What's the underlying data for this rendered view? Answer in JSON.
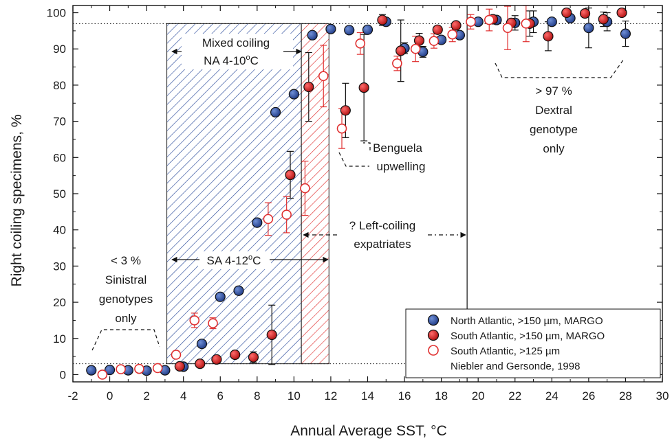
{
  "chart_data": {
    "type": "scatter",
    "xlabel": "Annual Average SST, °C",
    "ylabel": "Right coiling specimens, %",
    "xlim": [
      -2,
      30
    ],
    "ylim": [
      -2,
      102
    ],
    "x_ticks": [
      "-2",
      "0",
      "2",
      "4",
      "6",
      "8",
      "10",
      "12",
      "14",
      "16",
      "18",
      "20",
      "22",
      "24",
      "26",
      "28",
      "30"
    ],
    "y_ticks": [
      "0",
      "10",
      "20",
      "30",
      "40",
      "50",
      "60",
      "70",
      "80",
      "90",
      "100"
    ],
    "series": [
      {
        "name": "North Atlantic, >150 µm, MARGO",
        "marker": "filled-circle",
        "color": "#2b4b9b",
        "points": [
          [
            -1,
            1.2
          ],
          [
            0,
            1.3
          ],
          [
            1,
            1.2
          ],
          [
            2,
            1.1
          ],
          [
            3,
            1.2
          ],
          [
            4,
            2.2
          ],
          [
            5,
            8.5
          ],
          [
            6,
            21.5
          ],
          [
            7,
            23.2
          ],
          [
            8,
            42
          ],
          [
            9,
            72.5
          ],
          [
            10,
            77.5
          ],
          [
            11,
            93.8
          ],
          [
            12,
            95.5
          ],
          [
            13,
            95.2
          ],
          [
            14,
            95.3
          ],
          [
            15,
            97.5
          ],
          [
            16,
            90.2
          ],
          [
            17,
            89.2
          ],
          [
            18,
            92.5
          ],
          [
            19,
            93.8
          ],
          [
            20,
            97.5
          ],
          [
            21,
            98
          ],
          [
            22,
            97.2
          ],
          [
            23,
            97.5
          ],
          [
            24,
            97.5
          ],
          [
            25,
            98.5
          ],
          [
            26,
            95.8
          ],
          [
            27,
            97.5
          ],
          [
            28,
            94.2
          ]
        ],
        "errors": [
          [
            0,
            0
          ],
          [
            0,
            0
          ],
          [
            0,
            0
          ],
          [
            0,
            0
          ],
          [
            0,
            0
          ],
          [
            0,
            0
          ],
          [
            0,
            0
          ],
          [
            0,
            0
          ],
          [
            0,
            0
          ],
          [
            0,
            0
          ],
          [
            0,
            0
          ],
          [
            0,
            0
          ],
          [
            0,
            0
          ],
          [
            0,
            0
          ],
          [
            0,
            0
          ],
          [
            0,
            0
          ],
          [
            0,
            0
          ],
          [
            1.5,
            1.5
          ],
          [
            1.5,
            1.5
          ],
          [
            0,
            0
          ],
          [
            0,
            0
          ],
          [
            0,
            0
          ],
          [
            0,
            0
          ],
          [
            2,
            2
          ],
          [
            3,
            3
          ],
          [
            0,
            0
          ],
          [
            1,
            1
          ],
          [
            5.5,
            5.5
          ],
          [
            2.5,
            2.5
          ],
          [
            3.5,
            3.5
          ]
        ]
      },
      {
        "name": "South Atlantic, >150 µm, MARGO",
        "marker": "filled-circle",
        "color": "#d42020",
        "points": [
          [
            3.8,
            2.3
          ],
          [
            4.9,
            3
          ],
          [
            5.8,
            4.2
          ],
          [
            6.8,
            5.5
          ],
          [
            7.8,
            4.8
          ],
          [
            8.8,
            11
          ],
          [
            9.8,
            55.2
          ],
          [
            10.8,
            79.5
          ],
          [
            12.8,
            73
          ],
          [
            13.8,
            79.3
          ],
          [
            14.8,
            98
          ],
          [
            15.8,
            89.5
          ],
          [
            16.8,
            92.3
          ],
          [
            17.8,
            95.3
          ],
          [
            18.8,
            96.5
          ],
          [
            20.8,
            98.2
          ],
          [
            21.8,
            97.2
          ],
          [
            22.8,
            97
          ],
          [
            23.8,
            93.5
          ],
          [
            24.8,
            100
          ],
          [
            25.8,
            99.8
          ],
          [
            26.8,
            98.2
          ],
          [
            27.8,
            100
          ]
        ],
        "errors": [
          [
            0,
            0
          ],
          [
            0,
            0
          ],
          [
            0,
            0
          ],
          [
            0,
            0
          ],
          [
            1.5,
            1.5
          ],
          [
            8.2,
            8.2
          ],
          [
            6.5,
            6.5
          ],
          [
            9.5,
            9.5
          ],
          [
            7.5,
            7.5
          ],
          [
            14.7,
            14.7
          ],
          [
            1.5,
            1.5
          ],
          [
            8.5,
            8.5
          ],
          [
            2,
            2
          ],
          [
            0,
            0
          ],
          [
            0,
            0
          ],
          [
            0,
            0
          ],
          [
            0,
            0
          ],
          [
            3.5,
            3.5
          ],
          [
            4,
            4
          ],
          [
            0,
            0
          ],
          [
            0,
            0
          ],
          [
            2,
            2
          ],
          [
            0,
            0
          ]
        ]
      },
      {
        "name": "South Atlantic, >125 µm",
        "name_line2": "Niebler and Gersonde, 1998",
        "marker": "open-circle",
        "color": "#e03030",
        "points": [
          [
            -0.4,
            0
          ],
          [
            0.6,
            1.5
          ],
          [
            1.6,
            1.6
          ],
          [
            2.6,
            1.8
          ],
          [
            3.6,
            5.5
          ],
          [
            4.6,
            15
          ],
          [
            5.6,
            14.2
          ],
          [
            8.6,
            43
          ],
          [
            9.6,
            44.2
          ],
          [
            10.6,
            51.5
          ],
          [
            11.6,
            82.5
          ],
          [
            12.6,
            68
          ],
          [
            13.6,
            91.5
          ],
          [
            15.6,
            86
          ],
          [
            16.6,
            90
          ],
          [
            17.6,
            92.2
          ],
          [
            18.6,
            94
          ],
          [
            19.6,
            97.5
          ],
          [
            20.6,
            98
          ],
          [
            21.6,
            95.8
          ],
          [
            22.6,
            97
          ]
        ],
        "errors": [
          [
            0,
            0
          ],
          [
            0,
            0
          ],
          [
            0,
            0
          ],
          [
            0,
            0
          ],
          [
            1,
            1
          ],
          [
            2,
            2
          ],
          [
            1.5,
            1.5
          ],
          [
            4.5,
            4.5
          ],
          [
            5,
            5
          ],
          [
            7.5,
            7.5
          ],
          [
            8.5,
            8.5
          ],
          [
            5.5,
            5.5
          ],
          [
            3,
            3
          ],
          [
            2,
            2
          ],
          [
            3.5,
            3.5
          ],
          [
            2,
            2
          ],
          [
            2,
            2
          ],
          [
            2,
            2
          ],
          [
            3,
            3
          ],
          [
            6,
            6
          ],
          [
            5,
            5
          ]
        ]
      }
    ],
    "reference_lines": {
      "horizontal_dotted": [
        97,
        3
      ],
      "vertical_solid": [
        19.4
      ]
    },
    "shaded_regions": [
      {
        "label": "SA / NA mixed zone",
        "x": [
          3.1,
          10.4
        ],
        "color": "#2b4b9b",
        "pattern": "diagonal-hatch"
      },
      {
        "label": "SA extension",
        "x": [
          10.4,
          11.9
        ],
        "color": "#e03030",
        "pattern": "diagonal-hatch"
      }
    ],
    "annotations": {
      "mixed_coiling": "Mixed coiling",
      "na_range": "NA 4-10",
      "sa_range": "SA 4-12",
      "degree_sup": "o",
      "deg_c": "C",
      "left_coiling": "? Left-coiling",
      "expatriates": "expatriates",
      "benguela_1": "Benguela",
      "benguela_2": "upwelling",
      "dextral_1": "> 97 %",
      "dextral_2": "Dextral",
      "dextral_3": "genotype",
      "dextral_4": "only",
      "sinistral_1": "< 3 %",
      "sinistral_2": "Sinistral",
      "sinistral_3": "genotypes",
      "sinistral_4": "only"
    },
    "legend_position": "bottom-right",
    "grid": false
  }
}
